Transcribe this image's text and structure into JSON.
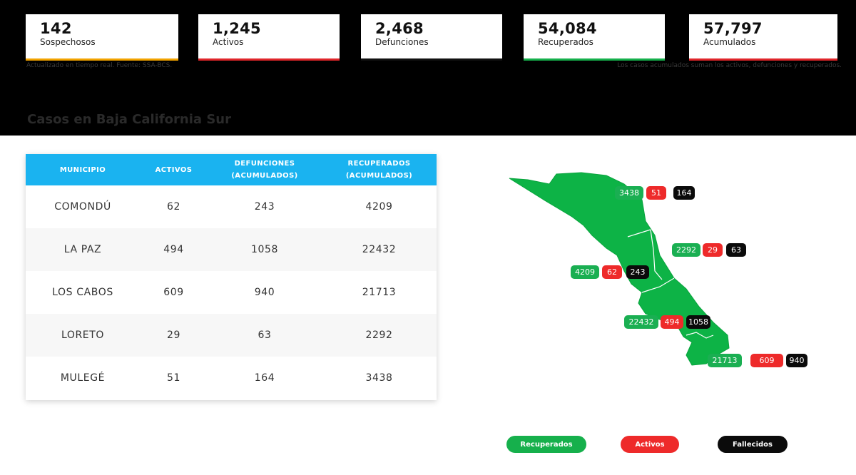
{
  "stats": [
    {
      "value": "142",
      "label": "Sospechosos",
      "color": "#f2a300"
    },
    {
      "value": "1,245",
      "label": "Activos",
      "color": "#e0262a"
    },
    {
      "value": "2,468",
      "label": "Defunciones",
      "color": "#111111"
    },
    {
      "value": "54,084",
      "label": "Recuperados",
      "color": "#16b04c"
    },
    {
      "value": "57,797",
      "label": "Acumulados",
      "color": "#e0262a"
    }
  ],
  "notes": {
    "left": "Actualizado en tiempo real. Fuente: SSA-BCS.",
    "right": "Los casos acumulados suman los activos, defunciones y recuperados."
  },
  "section_title": "Casos en Baja California Sur",
  "table": {
    "headers": {
      "municipio": "MUNICIPIO",
      "activos": "ACTIVOS",
      "defunciones_1": "DEFUNCIONES",
      "defunciones_2": "(ACUMULADOS)",
      "recuperados_1": "RECUPERADOS",
      "recuperados_2": "(ACUMULADOS)"
    },
    "rows": [
      {
        "municipio": "COMONDÚ",
        "activos": "62",
        "defunciones": "243",
        "recuperados": "4209"
      },
      {
        "municipio": "LA PAZ",
        "activos": "494",
        "defunciones": "1058",
        "recuperados": "22432"
      },
      {
        "municipio": "LOS CABOS",
        "activos": "609",
        "defunciones": "940",
        "recuperados": "21713"
      },
      {
        "municipio": "LORETO",
        "activos": "29",
        "defunciones": "63",
        "recuperados": "2292"
      },
      {
        "municipio": "MULEGÉ",
        "activos": "51",
        "defunciones": "164",
        "recuperados": "3438"
      }
    ]
  },
  "map": {
    "map_color": "#0db346",
    "markers": [
      {
        "municipio": "MULEGÉ",
        "recuperados": "3438",
        "activos": "51",
        "fallecidos": "164"
      },
      {
        "municipio": "LORETO",
        "recuperados": "2292",
        "activos": "29",
        "fallecidos": "63"
      },
      {
        "municipio": "COMONDÚ",
        "recuperados": "4209",
        "activos": "62",
        "fallecidos": "243"
      },
      {
        "municipio": "LA PAZ",
        "recuperados": "22432",
        "activos": "494",
        "fallecidos": "1058"
      },
      {
        "municipio": "LOS CABOS",
        "recuperados": "21713",
        "activos": "609",
        "fallecidos": "940"
      }
    ]
  },
  "legend": {
    "recuperados": "Recuperados",
    "activos": "Activos",
    "fallecidos": "Fallecidos"
  }
}
